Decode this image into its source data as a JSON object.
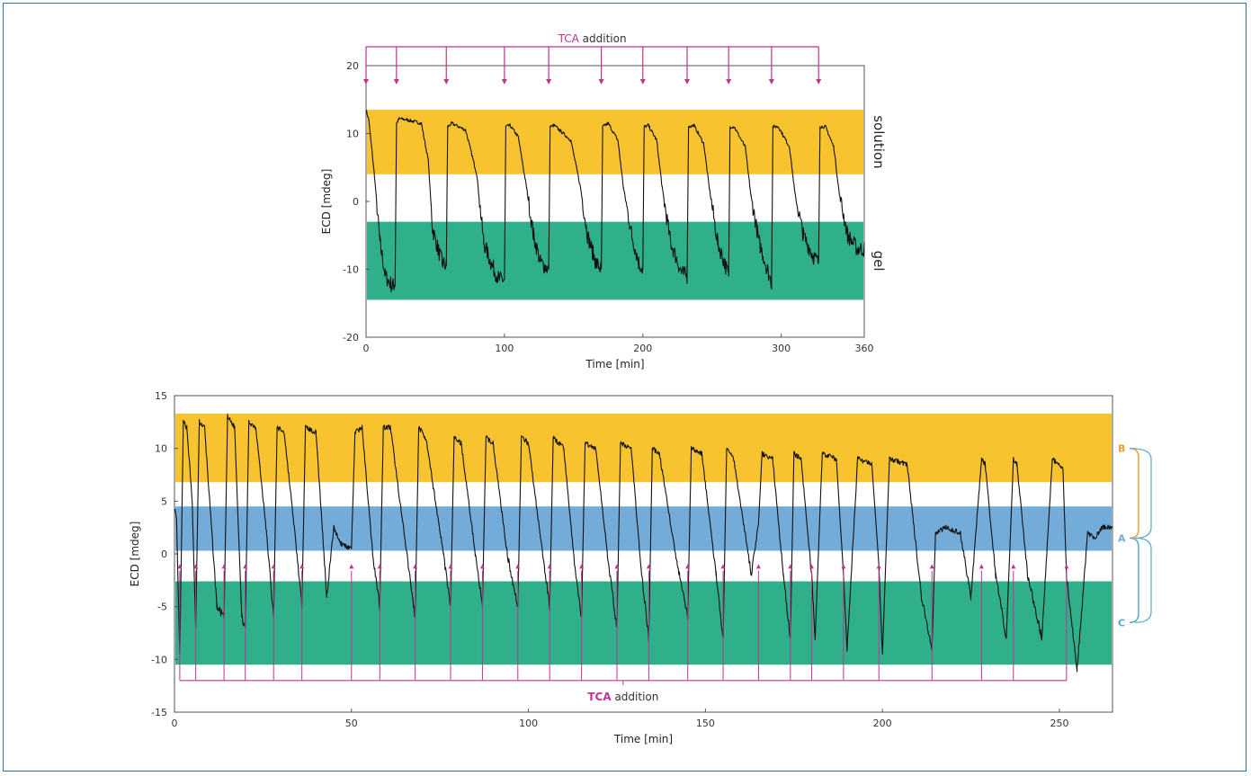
{
  "colors": {
    "solution": "#f7c430",
    "gel": "#2fb08a",
    "middle": "#73acd8",
    "trace": "#111111",
    "tca": "#c0338f",
    "frame": "#2f6fad",
    "bracket_b": "#f0a030",
    "bracket_c": "#5aa8c8"
  },
  "chart_data": [
    {
      "type": "line",
      "id": "top",
      "xlabel": "Time [min]",
      "ylabel": "ECD [mdeg]",
      "xlim": [
        0,
        360
      ],
      "ylim": [
        -20,
        20
      ],
      "xticks": [
        0,
        100,
        200,
        300,
        360
      ],
      "yticks": [
        20,
        10,
        0,
        -10,
        -20
      ],
      "bands": [
        {
          "name": "solution",
          "label": "solution",
          "y0": 4,
          "y1": 13.5,
          "color": "#f7c430"
        },
        {
          "name": "gel",
          "label": "gel",
          "y0": -14.5,
          "y1": -3,
          "color": "#2fb08a"
        }
      ],
      "annotation": {
        "prefix": "TCA",
        "text": " addition"
      },
      "tca_times": [
        0,
        22,
        58,
        100,
        132,
        170,
        200,
        232,
        262,
        293,
        327
      ],
      "series": [
        {
          "x": [
            0,
            2,
            6,
            10,
            14,
            19,
            21,
            22,
            24,
            30,
            40,
            45,
            48,
            52,
            55,
            58,
            59,
            62,
            72,
            80,
            85,
            90,
            96,
            100,
            101,
            104,
            110,
            116,
            121,
            126,
            132,
            133,
            136,
            148,
            155,
            160,
            166,
            170,
            171,
            175,
            182,
            186,
            192,
            197,
            200,
            201,
            204,
            210,
            214,
            220,
            228,
            232,
            233,
            237,
            244,
            248,
            254,
            259,
            262,
            263,
            266,
            274,
            278,
            284,
            290,
            293,
            294,
            298,
            306,
            310,
            316,
            323,
            327,
            328,
            332,
            338,
            342,
            348,
            355,
            360
          ],
          "y": [
            13.5,
            12,
            4,
            -6,
            -11,
            -12.5,
            -12,
            11.5,
            12.2,
            12,
            11.5,
            6,
            -4,
            -7,
            -9,
            -9.5,
            11,
            11.5,
            10.5,
            4,
            -6,
            -9,
            -11.5,
            -11.5,
            11,
            11.2,
            9.5,
            2,
            -5,
            -9,
            -10,
            11,
            11.2,
            9,
            2,
            -5,
            -9,
            -10,
            11,
            11.5,
            9,
            2,
            -5,
            -9,
            -10,
            11,
            11.2,
            9,
            2,
            -6,
            -10.5,
            -11,
            11,
            11.2,
            8.5,
            2,
            -6,
            -9,
            -11,
            11,
            11,
            8,
            1,
            -6,
            -10,
            -12,
            11,
            11,
            8,
            1,
            -5,
            -8,
            -9,
            11,
            11,
            8,
            1,
            -5,
            -7,
            -7
          ]
        }
      ]
    },
    {
      "type": "line",
      "id": "bottom",
      "xlabel": "Time [min]",
      "ylabel": "ECD [mdeg]",
      "xlim": [
        0,
        265
      ],
      "ylim": [
        -15,
        15
      ],
      "xticks": [
        0,
        50,
        100,
        150,
        200,
        250
      ],
      "yticks": [
        15,
        10,
        5,
        0,
        -5,
        -10,
        -15
      ],
      "bands": [
        {
          "name": "B",
          "y0": 6.8,
          "y1": 13.3,
          "color": "#f7c430"
        },
        {
          "name": "A",
          "y0": 0.3,
          "y1": 4.5,
          "color": "#73acd8"
        },
        {
          "name": "C",
          "y0": -10.5,
          "y1": -2.6,
          "color": "#2fb08a"
        }
      ],
      "state_labels": [
        {
          "text": "B",
          "y": 10
        },
        {
          "text": "A",
          "y": 1.5
        },
        {
          "text": "C",
          "y": -6.5
        }
      ],
      "annotation": {
        "prefix": "TCA",
        "text": " addition"
      },
      "tca_times": [
        1.5,
        6,
        14,
        20,
        28,
        36,
        50,
        58,
        68,
        78,
        87,
        97,
        106,
        115,
        125,
        134,
        145,
        155,
        165,
        174,
        180,
        189,
        199,
        214,
        228,
        237,
        252
      ],
      "series": [
        {
          "x": [
            0,
            0.6,
            1.5,
            2.5,
            3.5,
            5,
            6,
            7,
            8.5,
            12,
            14,
            15,
            17,
            19,
            20,
            21,
            23,
            26,
            28,
            29,
            31,
            34,
            36,
            37,
            40,
            43,
            45,
            47,
            50,
            51,
            53,
            56,
            58,
            59,
            61,
            66,
            68,
            69,
            71,
            76,
            78,
            79,
            81,
            85,
            87,
            88,
            90,
            94,
            97,
            98,
            100,
            104,
            106,
            107,
            110,
            113,
            115,
            116,
            119,
            123,
            125,
            126,
            129,
            132,
            134,
            135,
            137,
            142,
            145,
            146,
            149,
            153,
            155,
            156,
            158,
            163,
            165,
            166,
            169,
            172,
            174,
            175,
            177,
            180,
            181,
            183,
            187,
            189,
            190,
            193,
            197,
            199,
            200,
            202,
            207,
            211,
            214,
            215,
            218,
            222,
            225,
            228,
            229,
            232,
            235,
            237,
            238,
            241,
            245,
            248,
            251,
            252,
            255,
            258,
            260,
            262,
            265
          ],
          "y": [
            4.5,
            3,
            -9.5,
            12.5,
            12,
            5,
            -7,
            12.5,
            12,
            -5,
            -6,
            13,
            12,
            -6,
            -7,
            12.5,
            12,
            2,
            -6,
            12,
            11.5,
            2,
            -5,
            12,
            11.5,
            -4,
            2.5,
            1,
            0.5,
            11.5,
            12,
            0,
            -5,
            12,
            12,
            -1,
            -6,
            12,
            11,
            0,
            -5,
            11,
            10.5,
            0,
            -5,
            11,
            10.5,
            0,
            -5,
            11,
            10.5,
            0,
            -5,
            11,
            10,
            -1,
            -6,
            10.5,
            10,
            -2,
            -7,
            10.5,
            10,
            -2,
            -8,
            10,
            9.5,
            -1,
            -6,
            10,
            9.5,
            -2,
            -8,
            10,
            9,
            -2,
            3,
            9.5,
            9,
            -2,
            -8,
            9.5,
            9,
            -2,
            -8,
            9.5,
            9,
            -2,
            -9,
            9,
            8.5,
            -1,
            -9.5,
            9,
            8.5,
            -4,
            -9,
            2,
            2.5,
            2,
            -4,
            9,
            8.5,
            -2,
            -8,
            9,
            8.5,
            -2,
            -8,
            9,
            8,
            -2,
            -11,
            2,
            1.5,
            2.5,
            2.5
          ]
        }
      ]
    }
  ]
}
